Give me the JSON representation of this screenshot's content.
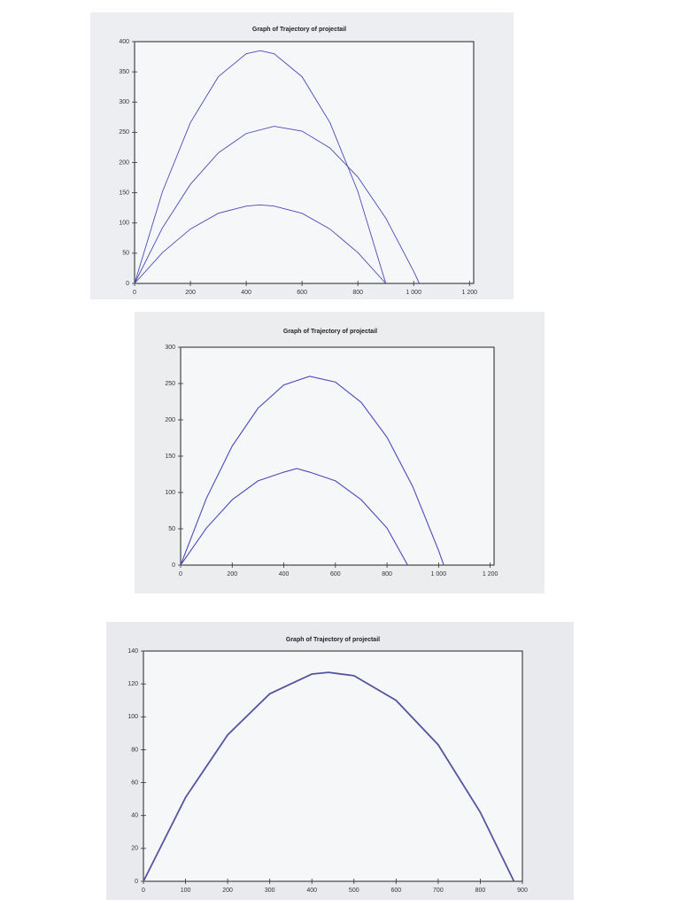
{
  "chart_data": [
    {
      "type": "line",
      "title": "Graph of Trajectory of projectail",
      "xlim": [
        0,
        1215
      ],
      "ylim": [
        0,
        400
      ],
      "xticks": [
        0,
        200,
        400,
        600,
        800,
        {
          "value": 1000,
          "label": "1 000"
        },
        {
          "value": 1200,
          "label": "1 200"
        }
      ],
      "yticks": [
        0,
        50,
        100,
        150,
        200,
        250,
        300,
        350,
        400
      ],
      "series": [
        {
          "color": "#4a4ab8",
          "x": [
            0,
            100,
            200,
            300,
            400,
            450,
            500,
            600,
            700,
            800,
            900
          ],
          "values": [
            0,
            152,
            266,
            342,
            380,
            385,
            380,
            342,
            266,
            152,
            0
          ]
        },
        {
          "color": "#4a4ab8",
          "x": [
            0,
            100,
            200,
            300,
            400,
            500,
            600,
            700,
            800,
            900,
            1000,
            1020
          ],
          "values": [
            0,
            92,
            164,
            216,
            248,
            260,
            252,
            224,
            176,
            108,
            20,
            0
          ]
        },
        {
          "color": "#4a4ab8",
          "x": [
            0,
            100,
            200,
            300,
            400,
            450,
            500,
            600,
            700,
            800,
            900
          ],
          "values": [
            0,
            51,
            90,
            116,
            128,
            130,
            128,
            116,
            90,
            51,
            0
          ]
        }
      ]
    },
    {
      "type": "line",
      "title": "Graph of Trajectory of projectail",
      "xlim": [
        0,
        1215
      ],
      "ylim": [
        0,
        300
      ],
      "xticks": [
        0,
        200,
        400,
        600,
        800,
        {
          "value": 1000,
          "label": "1 000"
        },
        {
          "value": 1200,
          "label": "1 200"
        }
      ],
      "yticks": [
        0,
        50,
        100,
        150,
        200,
        250,
        300
      ],
      "series": [
        {
          "color": "#4a4ab8",
          "x": [
            0,
            100,
            200,
            300,
            400,
            500,
            600,
            700,
            800,
            900,
            1000,
            1020
          ],
          "values": [
            0,
            92,
            164,
            216,
            248,
            260,
            252,
            224,
            176,
            108,
            20,
            0
          ]
        },
        {
          "color": "#4a4ab8",
          "x": [
            0,
            100,
            200,
            300,
            400,
            450,
            500,
            600,
            700,
            800,
            880
          ],
          "values": [
            0,
            51,
            90,
            116,
            128,
            133,
            128,
            116,
            90,
            51,
            0
          ]
        }
      ]
    },
    {
      "type": "line",
      "title": "Graph of Trajectory of projectail",
      "xlim": [
        0,
        900
      ],
      "ylim": [
        0,
        140
      ],
      "xticks": [
        0,
        100,
        200,
        300,
        400,
        500,
        600,
        700,
        800,
        900
      ],
      "yticks": [
        0,
        20,
        40,
        60,
        80,
        100,
        120,
        140
      ],
      "series": [
        {
          "color": "#55559e",
          "x": [
            0,
            100,
            200,
            300,
            400,
            440,
            500,
            600,
            700,
            800,
            880
          ],
          "values": [
            0,
            51,
            89,
            114,
            126,
            127,
            125,
            110,
            83,
            42,
            0
          ]
        }
      ]
    }
  ]
}
